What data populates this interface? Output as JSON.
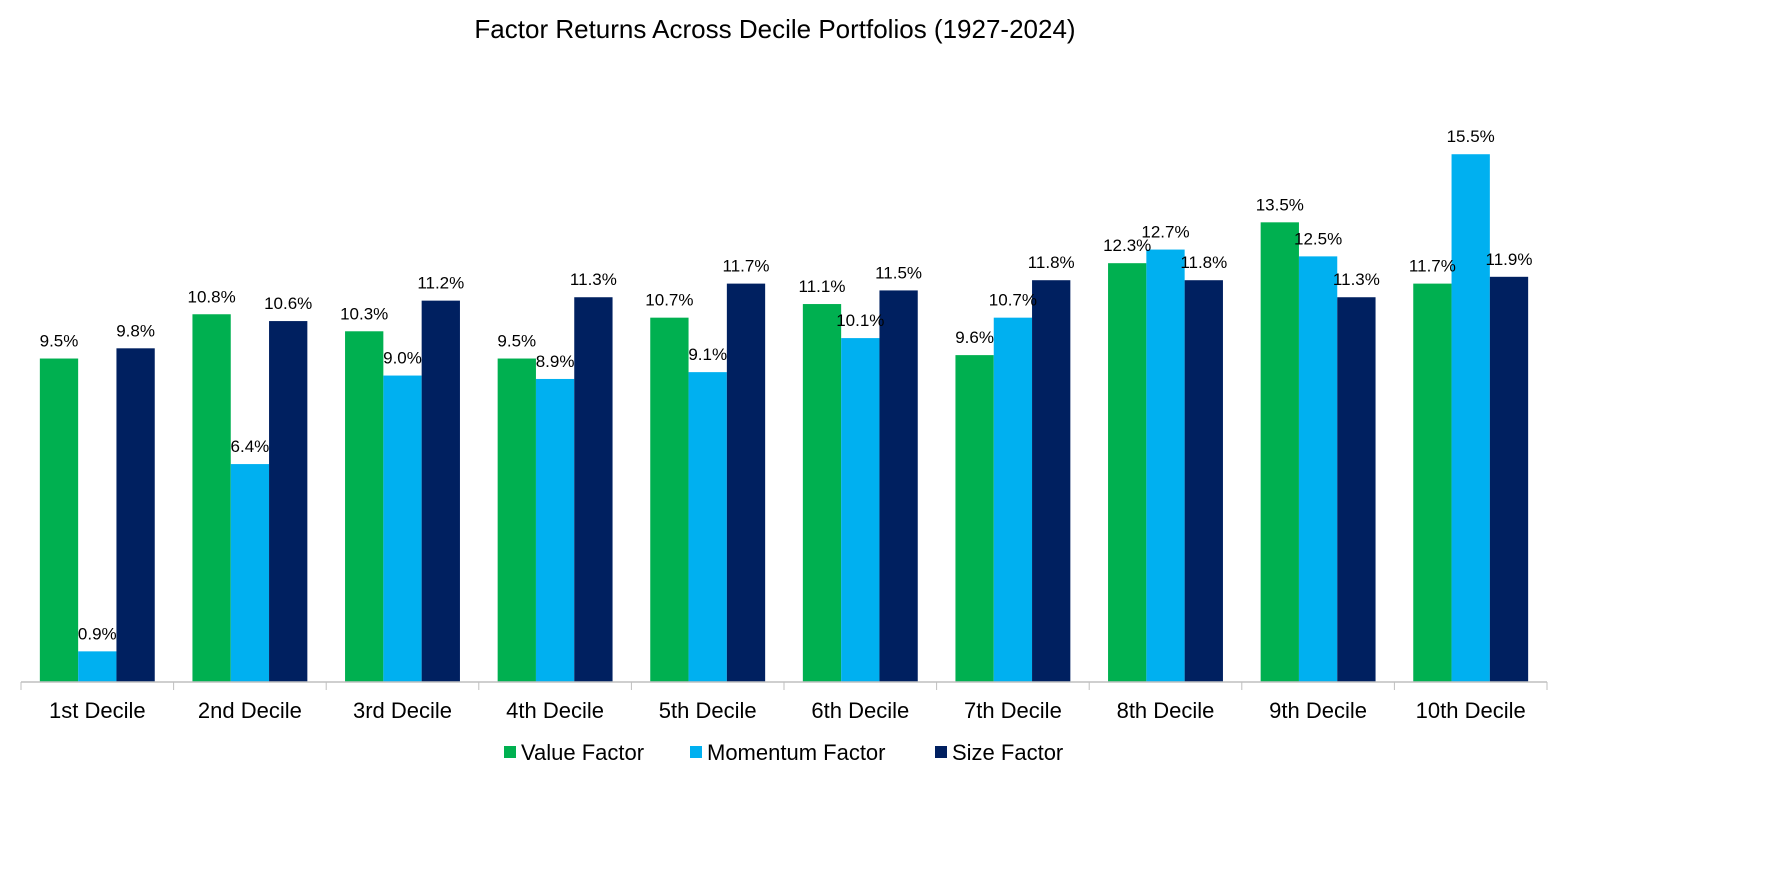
{
  "chart_data": {
    "type": "bar",
    "title": "Factor Returns Across Decile Portfolios (1927-2024)",
    "xlabel": "",
    "ylabel": "",
    "categories": [
      "1st Decile",
      "2nd Decile",
      "3rd Decile",
      "4th Decile",
      "5th Decile",
      "6th Decile",
      "7th Decile",
      "8th Decile",
      "9th Decile",
      "10th Decile"
    ],
    "series": [
      {
        "name": "Value Factor",
        "color": "#00B050",
        "values": [
          9.5,
          10.8,
          10.3,
          9.5,
          10.7,
          11.1,
          9.6,
          12.3,
          13.5,
          11.7
        ],
        "labels": [
          "9.5%",
          "10.8%",
          "10.3%",
          "9.5%",
          "10.7%",
          "11.1%",
          "9.6%",
          "12.3%",
          "13.5%",
          "11.7%"
        ]
      },
      {
        "name": "Momentum Factor",
        "color": "#00B0F0",
        "values": [
          0.9,
          6.4,
          9.0,
          8.9,
          9.1,
          10.1,
          10.7,
          12.7,
          12.5,
          15.5
        ],
        "labels": [
          "0.9%",
          "6.4%",
          "9.0%",
          "8.9%",
          "9.1%",
          "10.1%",
          "10.7%",
          "12.7%",
          "12.5%",
          "15.5%"
        ]
      },
      {
        "name": "Size Factor",
        "color": "#002060",
        "values": [
          9.8,
          10.6,
          11.2,
          11.3,
          11.7,
          11.5,
          11.8,
          11.8,
          11.3,
          11.9
        ],
        "labels": [
          "9.8%",
          "10.6%",
          "11.2%",
          "11.3%",
          "11.7%",
          "11.5%",
          "11.8%",
          "11.8%",
          "11.3%",
          "11.9%"
        ]
      }
    ],
    "ylim": [
      0,
      18
    ],
    "grid": false,
    "legend": "bottom",
    "axis_color": "#BFBFBF"
  }
}
